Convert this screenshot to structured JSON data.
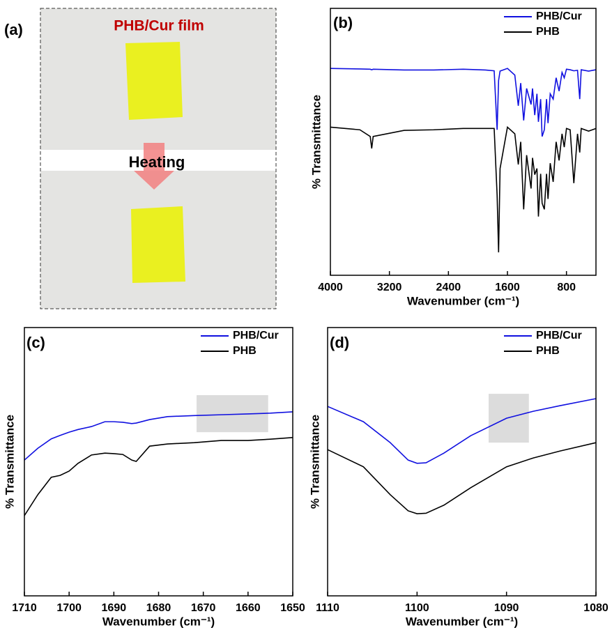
{
  "panel_a": {
    "label": "(a)",
    "film_label": "PHB/Cur film",
    "arrow_label": "Heating"
  },
  "chart_data": [
    {
      "type": "line",
      "panel_label": "(b)",
      "xlabel": "Wavenumber (cm⁻¹)",
      "ylabel": "% Transmittance",
      "xlim": [
        4000,
        400
      ],
      "ylim": [
        0,
        100
      ],
      "xticks": [
        4000,
        3200,
        2400,
        1600,
        800
      ],
      "legend": "top-right",
      "x": [
        4000,
        3600,
        3460,
        3440,
        3420,
        3000,
        2600,
        2200,
        1900,
        1780,
        1740,
        1720,
        1700,
        1600,
        1500,
        1453,
        1420,
        1380,
        1340,
        1280,
        1260,
        1230,
        1200,
        1180,
        1150,
        1130,
        1100,
        1070,
        1050,
        1020,
        980,
        940,
        900,
        860,
        830,
        800,
        750,
        700,
        650,
        620,
        600,
        500,
        400
      ],
      "series": [
        {
          "name": "PHB/Cur",
          "color": "#1010e0",
          "values": [
            77.5,
            77.3,
            77.2,
            77.0,
            77.2,
            76.9,
            76.9,
            77.2,
            76.9,
            76.6,
            54.5,
            73,
            76.5,
            77.5,
            75,
            63.5,
            72,
            58,
            70,
            64,
            70,
            60,
            68,
            57.5,
            66,
            52,
            54.5,
            66,
            57,
            68,
            66,
            74,
            69,
            76,
            74,
            77.2,
            77,
            76.6,
            76.8,
            66,
            77,
            76.5,
            77
          ]
        },
        {
          "name": "PHB",
          "color": "#000000",
          "values": [
            55.5,
            54.5,
            52,
            47.5,
            52,
            54.3,
            54.5,
            55,
            55,
            55,
            30,
            8.6,
            40,
            55.5,
            53,
            41.5,
            50,
            24.7,
            45,
            32.5,
            44,
            37.7,
            40,
            22,
            38,
            27,
            24.7,
            38,
            28.6,
            42,
            35,
            50,
            43,
            53,
            48,
            55,
            54.5,
            34.5,
            53,
            46,
            55,
            54,
            55
          ]
        }
      ]
    },
    {
      "type": "line",
      "panel_label": "(c)",
      "xlabel": "Wavenumber (cm⁻¹)",
      "ylabel": "% Transmittance",
      "xlim": [
        1710,
        1650
      ],
      "ylim": [
        0,
        100
      ],
      "xticks": [
        1710,
        1700,
        1690,
        1680,
        1670,
        1660,
        1650
      ],
      "legend": "top-right",
      "shaded_region": {
        "x": [
          1671.5,
          1655.5
        ],
        "y": [
          61,
          74.8
        ]
      },
      "x": [
        1710,
        1707,
        1704,
        1702,
        1700,
        1698,
        1695,
        1692,
        1690,
        1688,
        1686,
        1685,
        1682,
        1678,
        1672,
        1666,
        1660,
        1655,
        1650
      ],
      "series": [
        {
          "name": "PHB/Cur",
          "color": "#1010e0",
          "values": [
            50.6,
            55,
            58.5,
            59.8,
            61,
            62,
            63.1,
            64.9,
            64.9,
            64.7,
            64.2,
            64.4,
            65.7,
            66.8,
            67.2,
            67.5,
            67.8,
            68.1,
            68.6
          ]
        },
        {
          "name": "PHB",
          "color": "#000000",
          "values": [
            29.9,
            37.7,
            44.2,
            44.9,
            46.5,
            49.4,
            52.5,
            53.2,
            53.0,
            52.7,
            50.6,
            50.1,
            55.8,
            56.6,
            57.1,
            57.9,
            57.9,
            58.4,
            59.0
          ]
        }
      ]
    },
    {
      "type": "line",
      "panel_label": "(d)",
      "xlabel": "Wavenumber (cm⁻¹)",
      "ylabel": "% Transmittance",
      "xlim": [
        1110,
        1080
      ],
      "ylim": [
        0,
        100
      ],
      "xticks": [
        1110,
        1100,
        1090,
        1080
      ],
      "legend": "top-right",
      "shaded_region": {
        "x": [
          1092,
          1087.5
        ],
        "y": [
          57.1,
          75.3
        ]
      },
      "x": [
        1110,
        1106,
        1103,
        1101,
        1100,
        1099,
        1097,
        1094,
        1090,
        1087,
        1084,
        1080
      ],
      "series": [
        {
          "name": "PHB/Cur",
          "color": "#1010e0",
          "values": [
            70.6,
            64.9,
            57.1,
            50.6,
            49.4,
            49.6,
            53.2,
            59.7,
            66.2,
            68.8,
            70.9,
            73.5
          ]
        },
        {
          "name": "PHB",
          "color": "#000000",
          "values": [
            54.5,
            48.1,
            37.7,
            31.7,
            30.6,
            30.8,
            33.8,
            40.3,
            48.1,
            51.4,
            54.0,
            57.1
          ]
        }
      ]
    }
  ]
}
